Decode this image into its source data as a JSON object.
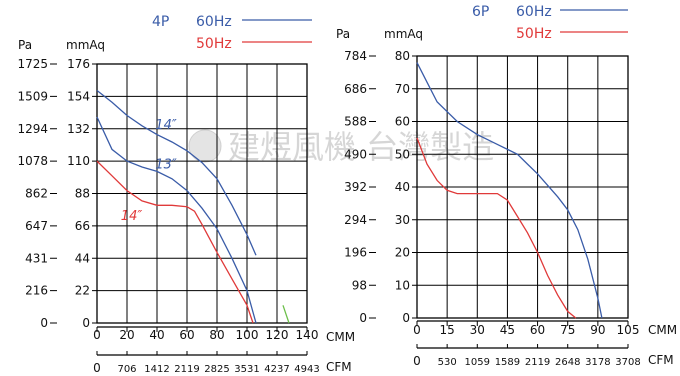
{
  "watermark": "建煜風機 台灣製造",
  "colors": {
    "blue": "#3a5ca8",
    "red": "#e03a3a",
    "green": "#6cbf4a",
    "axis": "#000000"
  },
  "chart_data": [
    {
      "type": "line",
      "legend": [
        {
          "label": "4P",
          "color": "#3a5ca8"
        },
        {
          "label": "60Hz",
          "color": "#3a5ca8",
          "line": true
        },
        {
          "label": "50Hz",
          "color": "#e03a3a",
          "line": true
        }
      ],
      "pa_unit": "Pa",
      "mmaq_unit": "mmAq",
      "cmm_unit": "CMM",
      "cfm_unit": "CFM",
      "xlim": [
        0,
        140
      ],
      "ylim": [
        0,
        176
      ],
      "x_ticks": [
        0,
        20,
        40,
        60,
        80,
        100,
        120,
        140
      ],
      "y_ticks_mmaq": [
        0,
        22,
        44,
        66,
        88,
        110,
        132,
        154,
        176
      ],
      "y_ticks_pa": [
        "0",
        "216",
        "431",
        "647",
        "862",
        "1078",
        "1294",
        "1509",
        "1725"
      ],
      "cfm_ticks": [
        "0",
        "706",
        "1412",
        "2119",
        "2825",
        "3531",
        "4237",
        "4943"
      ],
      "curve_labels": [
        {
          "text": "14″",
          "color": "#3a5ca8",
          "x": 46,
          "y": 132
        },
        {
          "text": "13″",
          "color": "#3a5ca8",
          "x": 46,
          "y": 105
        },
        {
          "text": "14″",
          "color": "#e03a3a",
          "x": 23,
          "y": 70
        }
      ],
      "series": [
        {
          "name": "14″",
          "color": "#3a5ca8",
          "x": [
            0,
            10,
            20,
            30,
            40,
            50,
            60,
            70,
            80,
            90,
            100,
            106
          ],
          "y": [
            158,
            150,
            141,
            134,
            128,
            123,
            117,
            109,
            98,
            80,
            60,
            46
          ]
        },
        {
          "name": "13″",
          "color": "#3a5ca8",
          "x": [
            0,
            10,
            20,
            30,
            40,
            50,
            60,
            70,
            80,
            90,
            100,
            106
          ],
          "y": [
            140,
            118,
            110,
            106,
            103,
            98,
            90,
            78,
            64,
            44,
            22,
            0
          ]
        },
        {
          "name": "14″",
          "color": "#e03a3a",
          "x": [
            0,
            10,
            20,
            30,
            40,
            50,
            60,
            65,
            70,
            80,
            90,
            100,
            104
          ],
          "y": [
            110,
            100,
            90,
            83,
            80,
            80,
            79,
            76,
            67,
            48,
            30,
            12,
            0
          ]
        },
        {
          "name": "",
          "color": "#6cbf4a",
          "x": [
            124,
            126,
            128
          ],
          "y": [
            12,
            6,
            0
          ]
        }
      ]
    },
    {
      "type": "line",
      "legend": [
        {
          "label": "6P",
          "color": "#3a5ca8"
        },
        {
          "label": "60Hz",
          "color": "#3a5ca8",
          "line": true
        },
        {
          "label": "50Hz",
          "color": "#e03a3a",
          "line": true
        }
      ],
      "pa_unit": "Pa",
      "mmaq_unit": "mmAq",
      "cmm_unit": "CMM",
      "cfm_unit": "CFM",
      "xlim": [
        0,
        105
      ],
      "ylim": [
        0,
        80
      ],
      "x_ticks": [
        0,
        15,
        30,
        45,
        60,
        75,
        90,
        105
      ],
      "y_ticks_mmaq": [
        0,
        10,
        20,
        30,
        40,
        50,
        60,
        70,
        80
      ],
      "y_ticks_pa": [
        "0",
        "98",
        "196",
        "294",
        "392",
        "490",
        "588",
        "686",
        "784"
      ],
      "cfm_ticks": [
        "0",
        "530",
        "1059",
        "1589",
        "2119",
        "2648",
        "3178",
        "3708"
      ],
      "curve_labels": [],
      "series": [
        {
          "name": "60Hz",
          "color": "#3a5ca8",
          "x": [
            0,
            5,
            10,
            20,
            30,
            40,
            50,
            55,
            60,
            70,
            75,
            80,
            85,
            90,
            92
          ],
          "y": [
            78,
            72,
            66,
            60,
            56,
            53,
            50,
            47,
            44,
            37,
            33,
            27,
            18,
            6,
            0
          ]
        },
        {
          "name": "50Hz",
          "color": "#e03a3a",
          "x": [
            0,
            5,
            10,
            15,
            20,
            30,
            40,
            45,
            50,
            55,
            60,
            65,
            70,
            75,
            79
          ],
          "y": [
            55,
            47,
            42,
            39,
            38,
            38,
            38,
            36,
            31,
            26,
            20,
            13,
            7,
            2,
            0
          ]
        }
      ]
    }
  ]
}
